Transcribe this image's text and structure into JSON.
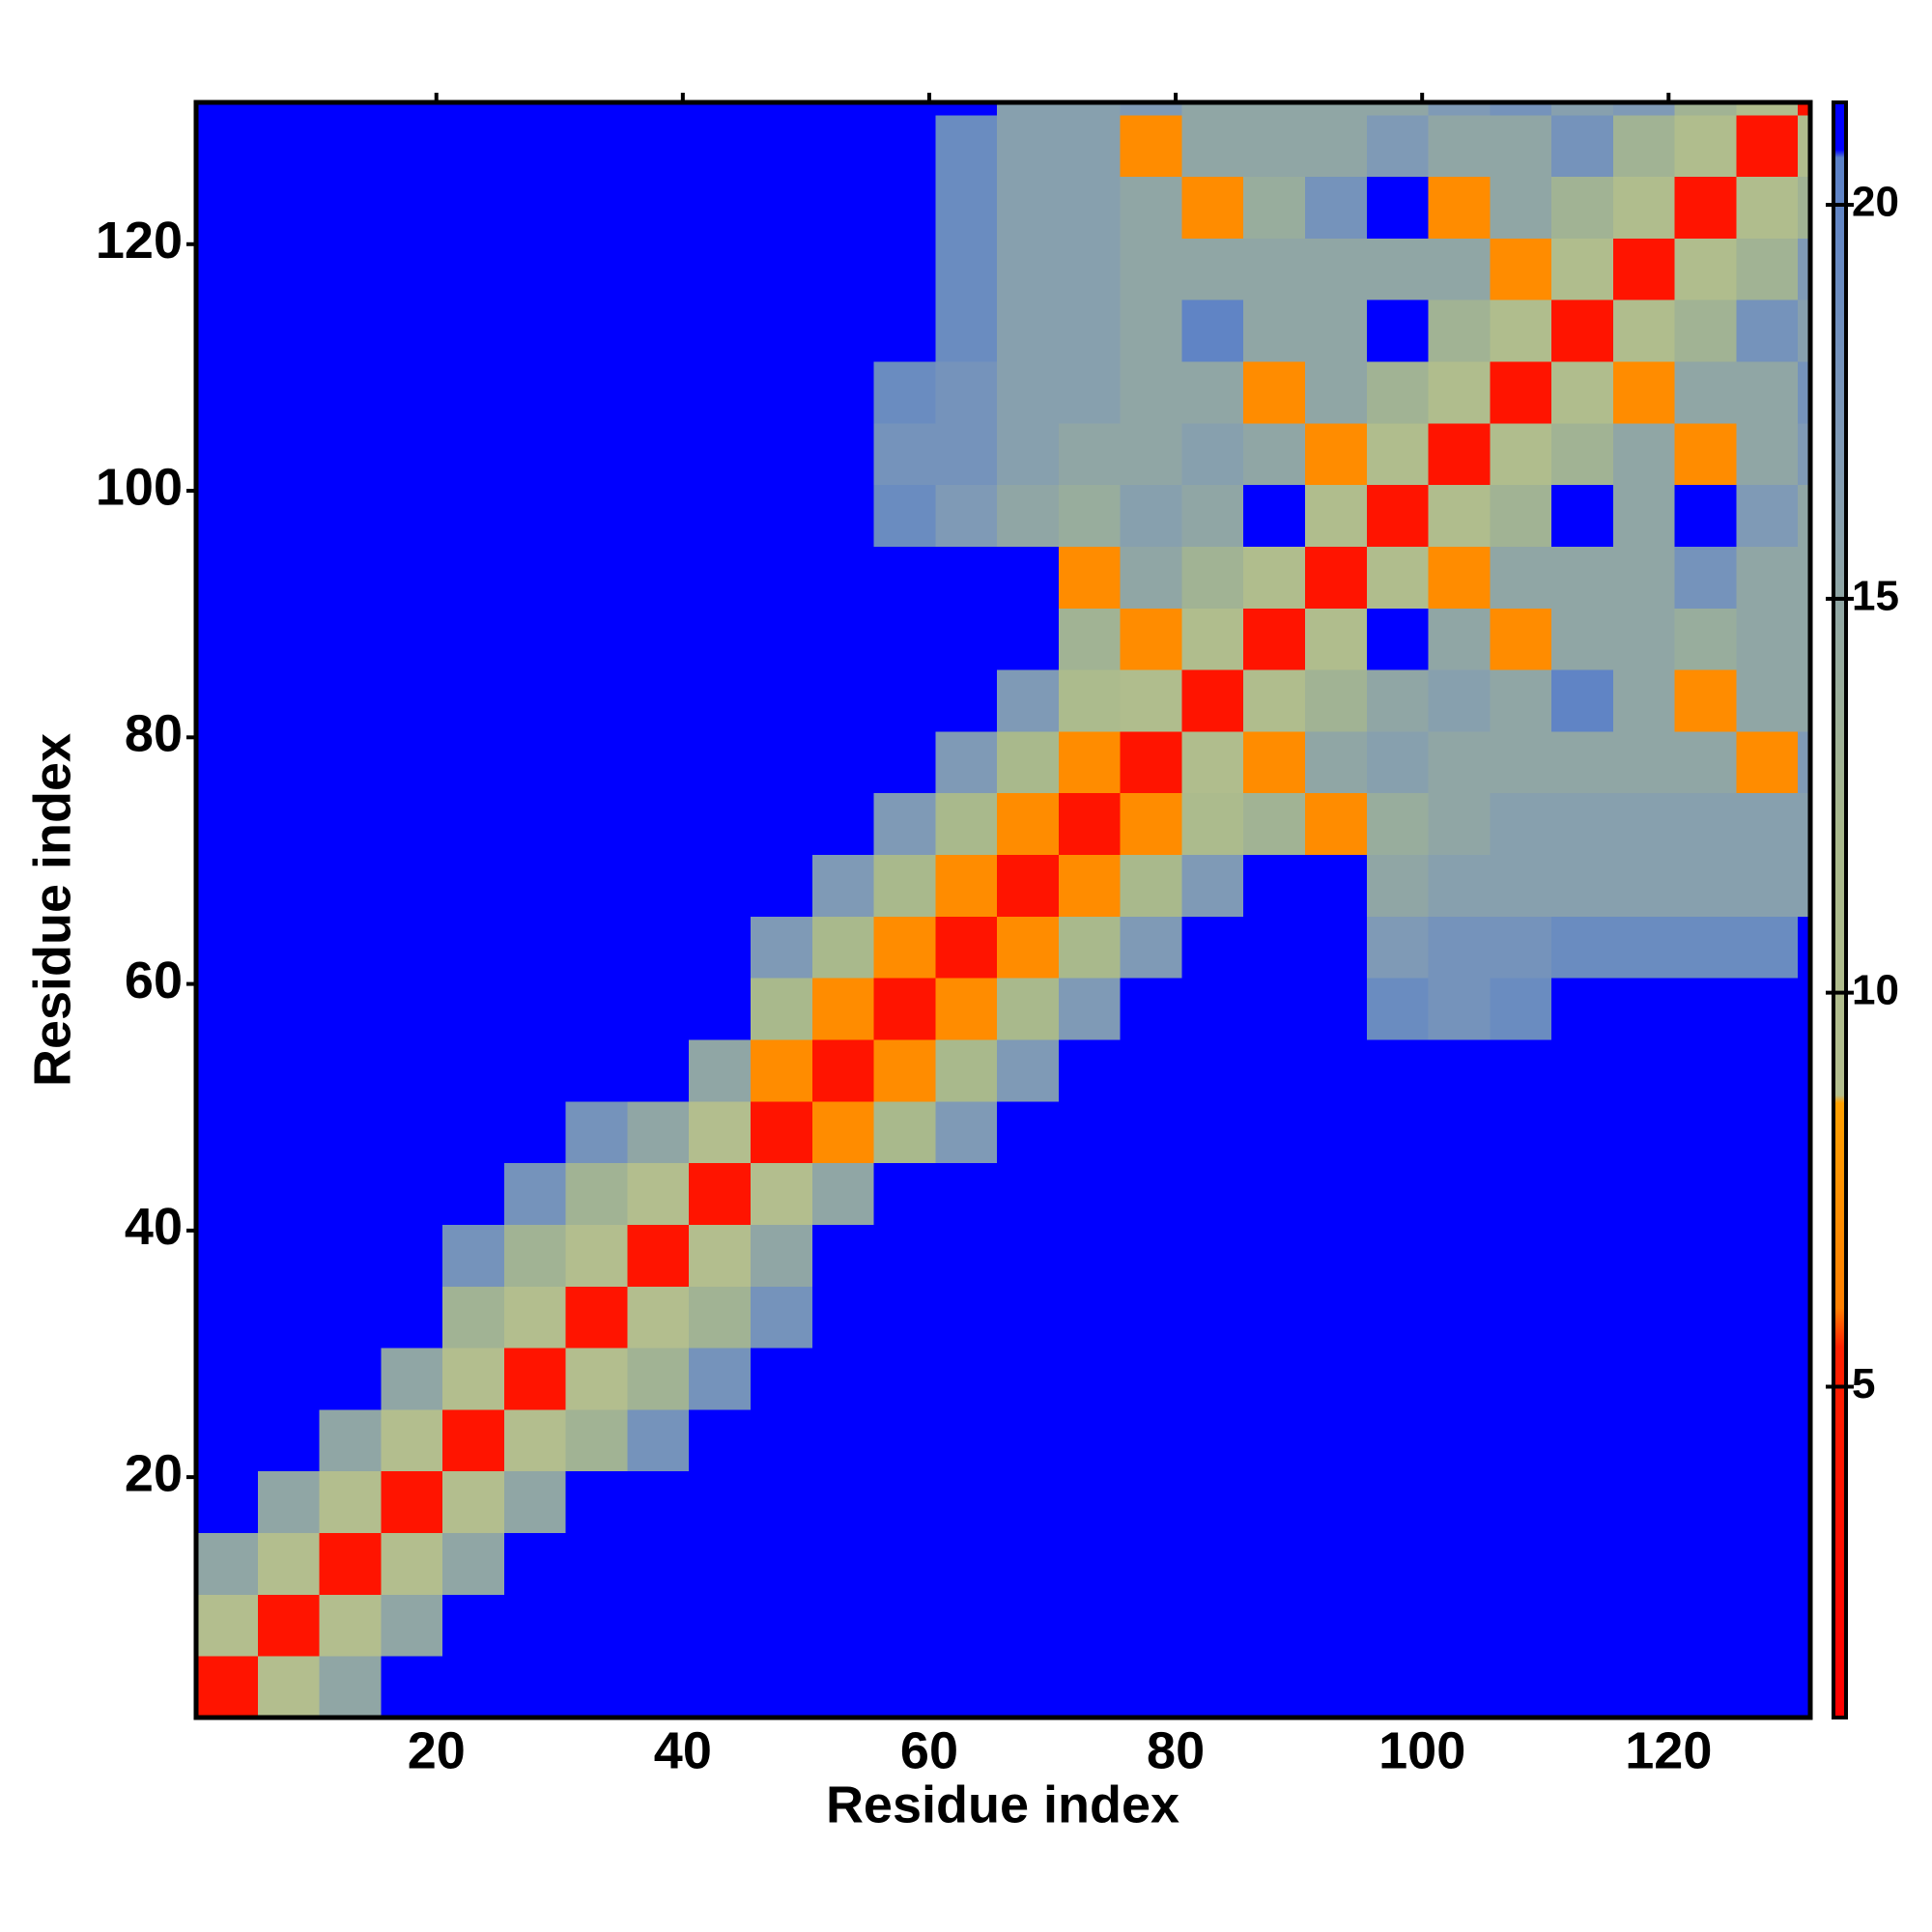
{
  "chart_data": {
    "type": "heatmap",
    "xlabel": "Residue index",
    "ylabel": "Residue index",
    "xbins": [
      0.5,
      5.5,
      10.5,
      15.5,
      20.5,
      25.5,
      30.5,
      35.5,
      40.5,
      45.5,
      50.5,
      55.5,
      60.5,
      65.5,
      70.5,
      75.5,
      80.5,
      85.5,
      90.5,
      95.5,
      100.5,
      105.5,
      110.5,
      115.5,
      120.5,
      125.5,
      130.5,
      131.5
    ],
    "ybins": [
      0.5,
      5.5,
      10.5,
      15.5,
      20.5,
      25.5,
      30.5,
      35.5,
      40.5,
      45.5,
      50.5,
      55.5,
      60.5,
      65.5,
      70.5,
      75.5,
      80.5,
      85.5,
      90.5,
      95.5,
      100.5,
      105.5,
      110.5,
      115.5,
      120.5,
      125.5,
      130.5,
      131.5
    ],
    "xlim": [
      0.5,
      131.5
    ],
    "ylim": [
      0.5,
      131.5
    ],
    "xticks": [
      20,
      40,
      60,
      80,
      100,
      120
    ],
    "yticks": [
      20,
      40,
      60,
      80,
      100,
      120
    ],
    "clim": [
      0.8,
      21.3
    ],
    "cticks": [
      5,
      10,
      15,
      20
    ],
    "colorscale": [
      [
        0.8,
        "#ff0000"
      ],
      [
        5.5,
        "#ff2000"
      ],
      [
        6,
        "#ff7f00"
      ],
      [
        8.6,
        "#ffa000"
      ],
      [
        8.7,
        "#b4bf8e"
      ],
      [
        12,
        "#a9b98c"
      ],
      [
        17,
        "#7f9ab6"
      ],
      [
        20.6,
        "#5a80c8"
      ],
      [
        20.7,
        "#0000ff"
      ],
      [
        21.3,
        "#0000ff"
      ]
    ],
    "z": [
      [
        3.8,
        9,
        15,
        21,
        21,
        21,
        21,
        21,
        21,
        21,
        21,
        21,
        21,
        21,
        21,
        21,
        21,
        21,
        21,
        21,
        21,
        21,
        21,
        21,
        21,
        21,
        21
      ],
      [
        9,
        3.8,
        9,
        15,
        21,
        21,
        21,
        21,
        21,
        21,
        21,
        21,
        21,
        21,
        21,
        21,
        21,
        21,
        21,
        21,
        21,
        21,
        21,
        21,
        21,
        21,
        21
      ],
      [
        15,
        9,
        3.8,
        9,
        15,
        21,
        21,
        21,
        21,
        21,
        21,
        21,
        21,
        21,
        21,
        21,
        21,
        21,
        21,
        21,
        21,
        21,
        21,
        21,
        21,
        21,
        21
      ],
      [
        21,
        15,
        9,
        3.8,
        9,
        15,
        21,
        21,
        21,
        21,
        21,
        21,
        21,
        21,
        21,
        21,
        21,
        21,
        21,
        21,
        21,
        21,
        21,
        21,
        21,
        21,
        21
      ],
      [
        21,
        21,
        15,
        9,
        3.8,
        9,
        13,
        18,
        21,
        21,
        21,
        21,
        21,
        21,
        21,
        21,
        21,
        21,
        21,
        21,
        21,
        21,
        21,
        21,
        21,
        21,
        21
      ],
      [
        21,
        21,
        21,
        15,
        9,
        3.8,
        9,
        13,
        18,
        21,
        21,
        21,
        21,
        21,
        21,
        21,
        21,
        21,
        21,
        21,
        21,
        21,
        21,
        21,
        21,
        21,
        21
      ],
      [
        21,
        21,
        21,
        21,
        13,
        9,
        3.8,
        9,
        13,
        18,
        21,
        21,
        21,
        21,
        21,
        21,
        21,
        21,
        21,
        21,
        21,
        21,
        21,
        21,
        21,
        21,
        21
      ],
      [
        21,
        21,
        21,
        21,
        18,
        13,
        9,
        3.8,
        9,
        15,
        21,
        21,
        21,
        21,
        21,
        21,
        21,
        21,
        21,
        21,
        21,
        21,
        21,
        21,
        21,
        21,
        21
      ],
      [
        21,
        21,
        21,
        21,
        21,
        18,
        13,
        9,
        3.8,
        9,
        15,
        21,
        21,
        21,
        21,
        21,
        21,
        21,
        21,
        21,
        21,
        21,
        21,
        21,
        21,
        21,
        21
      ],
      [
        21,
        21,
        21,
        21,
        21,
        21,
        18,
        15,
        9,
        3.8,
        7,
        12,
        17,
        21,
        21,
        21,
        21,
        21,
        21,
        21,
        21,
        21,
        21,
        21,
        21,
        21,
        21
      ],
      [
        21,
        21,
        21,
        21,
        21,
        21,
        21,
        21,
        15,
        7,
        3.8,
        7,
        12,
        17,
        21,
        21,
        21,
        21,
        21,
        21,
        21,
        21,
        21,
        21,
        21,
        21,
        21
      ],
      [
        21,
        21,
        21,
        21,
        21,
        21,
        21,
        21,
        21,
        12,
        7,
        3.8,
        7,
        12,
        17,
        21,
        21,
        21,
        21,
        19,
        18,
        19,
        21,
        21,
        21,
        21,
        21
      ],
      [
        21,
        21,
        21,
        21,
        21,
        21,
        21,
        21,
        21,
        17,
        12,
        7,
        3.8,
        7,
        12,
        17,
        21,
        21,
        21,
        17,
        18,
        18,
        19,
        19,
        19,
        19,
        21
      ],
      [
        21,
        21,
        21,
        21,
        21,
        21,
        21,
        21,
        21,
        21,
        17,
        12,
        7,
        3.8,
        7,
        12,
        17,
        21,
        21,
        15,
        16,
        16,
        16,
        16,
        16,
        16,
        16
      ],
      [
        21,
        21,
        21,
        21,
        21,
        21,
        21,
        21,
        21,
        21,
        21,
        17,
        12,
        7,
        3.8,
        7,
        11,
        13,
        7,
        14,
        15,
        16,
        16,
        16,
        16,
        16,
        16
      ],
      [
        21,
        21,
        21,
        21,
        21,
        21,
        21,
        21,
        21,
        21,
        21,
        21,
        17,
        12,
        7,
        3.8,
        10,
        7,
        15,
        16,
        15,
        15,
        15,
        15,
        15,
        7,
        17
      ],
      [
        21,
        21,
        21,
        21,
        21,
        21,
        21,
        21,
        21,
        21,
        21,
        21,
        21,
        17,
        11,
        10,
        3.8,
        10,
        13,
        15,
        16,
        15,
        20,
        15,
        7,
        15,
        15
      ],
      [
        21,
        21,
        21,
        21,
        21,
        21,
        21,
        21,
        21,
        21,
        21,
        21,
        21,
        21,
        13,
        7,
        10,
        3.8,
        10,
        21,
        15,
        7,
        15,
        15,
        14,
        15,
        15
      ],
      [
        21,
        21,
        21,
        21,
        21,
        21,
        21,
        21,
        21,
        21,
        21,
        21,
        21,
        21,
        7,
        15,
        13,
        10,
        3.8,
        10,
        7,
        15,
        15,
        15,
        18,
        15,
        15
      ],
      [
        21,
        21,
        21,
        21,
        21,
        21,
        21,
        21,
        21,
        21,
        21,
        19,
        17,
        15,
        14,
        16,
        15,
        21,
        10,
        3.8,
        10,
        13,
        21,
        15,
        21,
        17,
        15
      ],
      [
        21,
        21,
        21,
        21,
        21,
        21,
        21,
        21,
        21,
        21,
        21,
        18,
        18,
        16,
        15,
        15,
        16,
        15,
        7,
        10,
        3.8,
        10,
        13,
        15,
        7,
        15,
        17
      ],
      [
        21,
        21,
        21,
        21,
        21,
        21,
        21,
        21,
        21,
        21,
        21,
        19,
        18,
        16,
        16,
        15,
        15,
        7,
        15,
        13,
        10,
        3.8,
        10,
        7,
        15,
        15,
        18
      ],
      [
        21,
        21,
        21,
        21,
        21,
        21,
        21,
        21,
        21,
        21,
        21,
        21,
        19,
        16,
        16,
        15,
        20,
        15,
        15,
        21,
        13,
        10,
        3.8,
        10,
        13,
        18,
        16
      ],
      [
        21,
        21,
        21,
        21,
        21,
        21,
        21,
        21,
        21,
        21,
        21,
        21,
        19,
        16,
        16,
        15,
        15,
        15,
        15,
        15,
        15,
        7,
        10,
        3.8,
        10,
        13,
        17
      ],
      [
        21,
        21,
        21,
        21,
        21,
        21,
        21,
        21,
        21,
        21,
        21,
        21,
        19,
        16,
        16,
        15,
        7,
        14,
        18,
        21,
        7,
        15,
        13,
        10,
        3.8,
        10,
        13
      ],
      [
        21,
        21,
        21,
        21,
        21,
        21,
        21,
        21,
        21,
        21,
        21,
        21,
        19,
        16,
        16,
        7,
        15,
        15,
        15,
        17,
        15,
        15,
        18,
        13,
        10,
        3.8,
        10
      ],
      [
        21,
        21,
        21,
        21,
        21,
        21,
        21,
        21,
        21,
        21,
        21,
        21,
        21,
        16,
        16,
        17,
        15,
        15,
        15,
        15,
        17,
        18,
        16,
        17,
        13,
        10,
        3.8
      ]
    ]
  }
}
